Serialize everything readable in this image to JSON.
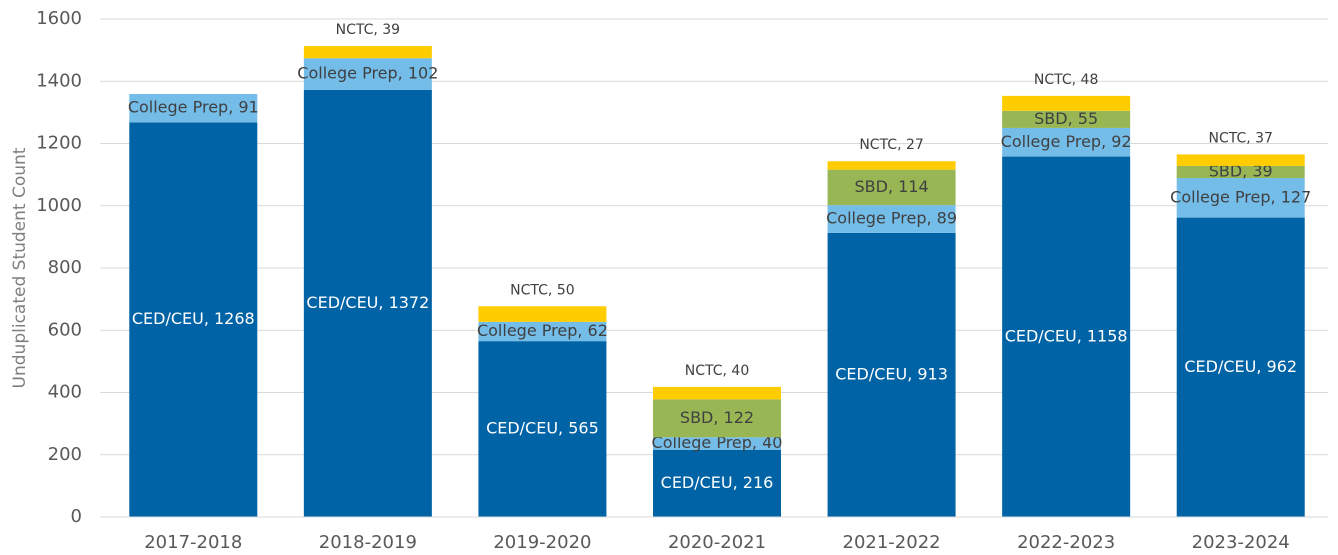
{
  "chart_data": {
    "type": "stacked_bar",
    "y_label": "Unduplicated Student Count",
    "categories": [
      "2017-2018",
      "2018-2019",
      "2019-2020",
      "2020-2021",
      "2021-2022",
      "2022-2023",
      "2023-2024"
    ],
    "series": [
      {
        "name": "CED/CEU",
        "color": "#0063a6",
        "label_color": "#ffffff",
        "values": [
          1268,
          1372,
          565,
          216,
          913,
          1158,
          962
        ],
        "value_labels": [
          "CED/CEU, 1268",
          "CED/CEU, 1372",
          "CED/CEU, 565",
          "CED/CEU, 216",
          "CED/CEU, 913",
          "CED/CEU, 1158",
          "CED/CEU, 962"
        ]
      },
      {
        "name": "College Prep",
        "color": "#74bde9",
        "label_color": "#404040",
        "values": [
          91,
          102,
          62,
          40,
          89,
          92,
          127
        ],
        "value_labels": [
          "College Prep, 91",
          "College Prep, 102",
          "College Prep, 62",
          "College Prep, 40",
          "College Prep, 89",
          "College Prep, 92",
          "College Prep, 127"
        ]
      },
      {
        "name": "SBD",
        "color": "#98b754",
        "label_color": "#404040",
        "values": [
          null,
          null,
          null,
          122,
          114,
          55,
          39
        ],
        "value_labels": [
          null,
          null,
          null,
          "SBD, 122",
          "SBD, 114",
          "SBD, 55",
          "SBD, 39"
        ]
      },
      {
        "name": "NCTC",
        "color": "#ffcc00",
        "label_color": "#404040",
        "label_position": "above",
        "values": [
          null,
          39,
          50,
          40,
          27,
          48,
          37
        ],
        "value_labels": [
          null,
          "NCTC, 39",
          "NCTC, 50",
          "NCTC, 40",
          "NCTC, 27",
          "NCTC, 48",
          "NCTC, 37"
        ]
      }
    ],
    "ylim": [
      0,
      1600
    ],
    "yticks": [
      0,
      200,
      400,
      600,
      800,
      1000,
      1200,
      1400,
      1600
    ],
    "grid": true
  }
}
